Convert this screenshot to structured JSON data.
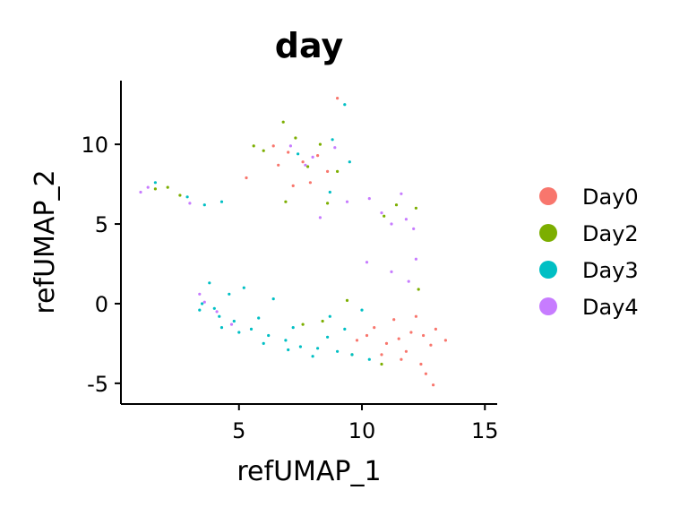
{
  "chart_data": {
    "type": "scatter",
    "title": "day",
    "xlabel": "refUMAP_1",
    "ylabel": "refUMAP_2",
    "xlim": [
      0.2,
      15.5
    ],
    "ylim": [
      -6.3,
      14.0
    ],
    "xticks": [
      5,
      10,
      15
    ],
    "xtick_labels": [
      "5",
      "10",
      "15"
    ],
    "yticks": [
      -5,
      0,
      5,
      10
    ],
    "ytick_labels": [
      "-5",
      "0",
      "5",
      "10"
    ],
    "grid": false,
    "legend_position": "right",
    "series": [
      {
        "name": "Day0",
        "color": "#F8766D",
        "points": [
          [
            11.5,
            -2.2
          ],
          [
            12.0,
            -1.8
          ],
          [
            11.0,
            -2.5
          ],
          [
            12.5,
            -2.0
          ],
          [
            10.5,
            -1.5
          ],
          [
            11.8,
            -3.0
          ],
          [
            12.8,
            -2.6
          ],
          [
            10.2,
            -2.0
          ],
          [
            11.3,
            -1.0
          ],
          [
            12.2,
            -0.8
          ],
          [
            9.8,
            -2.3
          ],
          [
            13.0,
            -1.6
          ],
          [
            11.6,
            -3.5
          ],
          [
            12.4,
            -3.8
          ],
          [
            10.8,
            -3.2
          ],
          [
            13.4,
            -2.3
          ],
          [
            12.6,
            -4.4
          ],
          [
            12.9,
            -5.1
          ],
          [
            7.0,
            9.5
          ],
          [
            7.6,
            8.9
          ],
          [
            8.2,
            9.3
          ],
          [
            6.6,
            8.7
          ],
          [
            8.6,
            8.3
          ],
          [
            7.9,
            7.6
          ],
          [
            6.4,
            9.9
          ],
          [
            9.0,
            12.9
          ],
          [
            5.3,
            7.9
          ],
          [
            7.2,
            7.4
          ]
        ]
      },
      {
        "name": "Day2",
        "color": "#7CAE00",
        "points": [
          [
            6.8,
            11.4
          ],
          [
            7.3,
            10.4
          ],
          [
            6.0,
            9.6
          ],
          [
            5.6,
            9.9
          ],
          [
            8.3,
            10.0
          ],
          [
            9.0,
            8.3
          ],
          [
            7.8,
            8.6
          ],
          [
            8.6,
            6.3
          ],
          [
            6.9,
            6.4
          ],
          [
            10.9,
            5.5
          ],
          [
            11.4,
            6.2
          ],
          [
            12.2,
            6.0
          ],
          [
            2.1,
            7.3
          ],
          [
            2.6,
            6.8
          ],
          [
            1.6,
            7.2
          ],
          [
            9.4,
            0.2
          ],
          [
            8.4,
            -1.1
          ],
          [
            7.6,
            -1.3
          ],
          [
            10.8,
            -3.8
          ],
          [
            9.6,
            -3.2
          ],
          [
            12.3,
            0.9
          ]
        ]
      },
      {
        "name": "Day3",
        "color": "#00BFC4",
        "points": [
          [
            3.5,
            0.0
          ],
          [
            4.2,
            -0.8
          ],
          [
            4.8,
            -1.1
          ],
          [
            5.5,
            -1.6
          ],
          [
            6.2,
            -2.0
          ],
          [
            6.9,
            -2.3
          ],
          [
            7.5,
            -2.7
          ],
          [
            8.2,
            -2.8
          ],
          [
            9.0,
            -3.0
          ],
          [
            9.6,
            -3.2
          ],
          [
            10.3,
            -3.5
          ],
          [
            4.0,
            -0.3
          ],
          [
            5.0,
            -1.8
          ],
          [
            6.0,
            -2.5
          ],
          [
            7.0,
            -2.9
          ],
          [
            8.0,
            -3.3
          ],
          [
            5.8,
            -0.9
          ],
          [
            7.2,
            -1.5
          ],
          [
            8.6,
            -2.1
          ],
          [
            9.3,
            -1.6
          ],
          [
            4.6,
            0.6
          ],
          [
            3.8,
            1.3
          ],
          [
            5.2,
            1.0
          ],
          [
            6.4,
            0.3
          ],
          [
            10.0,
            -0.4
          ],
          [
            8.7,
            -0.8
          ],
          [
            4.3,
            -1.5
          ],
          [
            3.4,
            -0.4
          ],
          [
            9.3,
            12.5
          ],
          [
            8.8,
            10.3
          ],
          [
            9.5,
            8.9
          ],
          [
            7.4,
            9.4
          ],
          [
            8.7,
            7.0
          ],
          [
            1.6,
            7.6
          ],
          [
            2.9,
            6.7
          ],
          [
            4.3,
            6.4
          ],
          [
            3.6,
            6.2
          ]
        ]
      },
      {
        "name": "Day4",
        "color": "#C77CFF",
        "points": [
          [
            3.6,
            0.1
          ],
          [
            4.1,
            -0.5
          ],
          [
            3.4,
            0.6
          ],
          [
            4.7,
            -1.3
          ],
          [
            7.7,
            8.7
          ],
          [
            7.1,
            9.9
          ],
          [
            8.9,
            9.8
          ],
          [
            8.0,
            9.2
          ],
          [
            10.8,
            5.7
          ],
          [
            11.2,
            5.0
          ],
          [
            11.8,
            5.3
          ],
          [
            12.1,
            4.7
          ],
          [
            10.3,
            6.6
          ],
          [
            9.4,
            6.4
          ],
          [
            11.6,
            6.9
          ],
          [
            1.0,
            7.0
          ],
          [
            1.3,
            7.3
          ],
          [
            3.0,
            6.3
          ],
          [
            10.2,
            2.6
          ],
          [
            11.2,
            2.0
          ],
          [
            11.9,
            1.4
          ],
          [
            8.3,
            5.4
          ],
          [
            12.2,
            2.8
          ]
        ]
      }
    ]
  }
}
